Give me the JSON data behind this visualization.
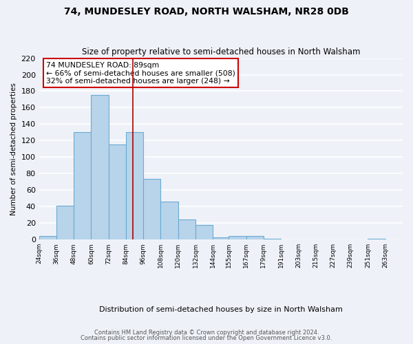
{
  "title": "74, MUNDESLEY ROAD, NORTH WALSHAM, NR28 0DB",
  "subtitle": "Size of property relative to semi-detached houses in North Walsham",
  "xlabel": "Distribution of semi-detached houses by size in North Walsham",
  "ylabel": "Number of semi-detached properties",
  "bin_labels": [
    "24sqm",
    "36sqm",
    "48sqm",
    "60sqm",
    "72sqm",
    "84sqm",
    "96sqm",
    "108sqm",
    "120sqm",
    "132sqm",
    "144sqm",
    "155sqm",
    "167sqm",
    "179sqm",
    "191sqm",
    "203sqm",
    "215sqm",
    "227sqm",
    "239sqm",
    "251sqm",
    "263sqm"
  ],
  "bin_edges": [
    24,
    36,
    48,
    60,
    72,
    84,
    96,
    108,
    120,
    132,
    144,
    155,
    167,
    179,
    191,
    203,
    215,
    227,
    239,
    251,
    263,
    275
  ],
  "counts": [
    4,
    41,
    130,
    175,
    115,
    130,
    74,
    46,
    24,
    18,
    3,
    4,
    4,
    1,
    0,
    0,
    0,
    0,
    0,
    1,
    0
  ],
  "bar_color": "#b8d4ea",
  "bar_edge_color": "#6aaad4",
  "property_size": 89,
  "vline_color": "#aa0000",
  "annotation_title": "74 MUNDESLEY ROAD: 89sqm",
  "annotation_line1": "← 66% of semi-detached houses are smaller (508)",
  "annotation_line2": "32% of semi-detached houses are larger (248) →",
  "annotation_box_color": "#ffffff",
  "annotation_box_edge": "#cc0000",
  "ylim": [
    0,
    220
  ],
  "yticks": [
    0,
    20,
    40,
    60,
    80,
    100,
    120,
    140,
    160,
    180,
    200,
    220
  ],
  "footer1": "Contains HM Land Registry data © Crown copyright and database right 2024.",
  "footer2": "Contains public sector information licensed under the Open Government Licence v3.0.",
  "bg_color": "#eef2f8",
  "grid_color": "#ffffff"
}
